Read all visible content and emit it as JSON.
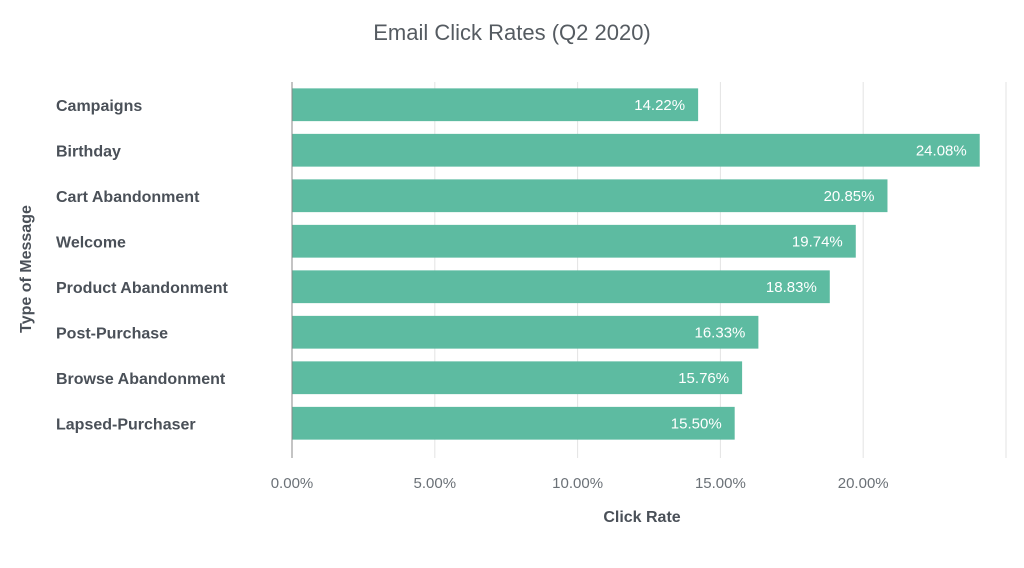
{
  "chart_data": {
    "type": "bar",
    "orientation": "horizontal",
    "title": "Email Click Rates (Q2 2020)",
    "xlabel": "Click Rate",
    "ylabel": "Type of Message",
    "categories": [
      "Campaigns",
      "Birthday",
      "Cart Abandonment",
      "Welcome",
      "Product Abandonment",
      "Post-Purchase",
      "Browse Abandonment",
      "Lapsed-Purchaser"
    ],
    "values": [
      14.22,
      24.08,
      20.85,
      19.74,
      18.83,
      16.33,
      15.76,
      15.5
    ],
    "data_labels": [
      "14.22%",
      "24.08%",
      "20.85%",
      "19.74%",
      "18.83%",
      "16.33%",
      "15.76%",
      "15.50%"
    ],
    "xlim": [
      0,
      25
    ],
    "x_ticks": [
      0,
      5,
      10,
      15,
      20
    ],
    "x_tick_labels": [
      "0.00%",
      "5.00%",
      "10.00%",
      "15.00%",
      "20.00%"
    ],
    "grid": true,
    "legend": false,
    "bar_color": "#5dbba1",
    "grid_color": "#e3e3e3",
    "axis_color": "#888888"
  }
}
